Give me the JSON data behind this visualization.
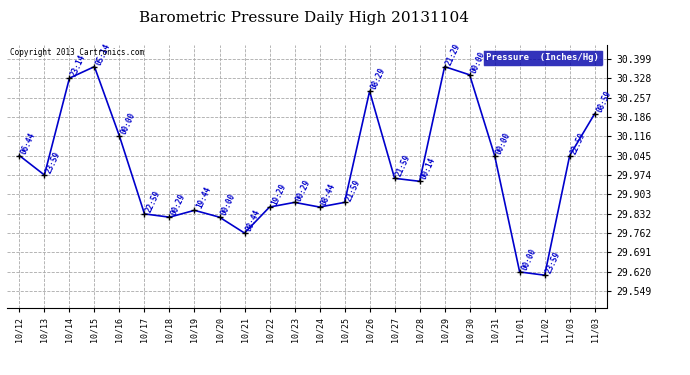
{
  "title": "Barometric Pressure Daily High 20131104",
  "copyright": "Copyright 2013 Cartronics.com",
  "legend_label": "Pressure  (Inches/Hg)",
  "line_color": "#0000CC",
  "marker_color": "#000000",
  "background_color": "#ffffff",
  "grid_color": "#aaaaaa",
  "points": [
    {
      "xi": 0,
      "date": "10/12",
      "value": 30.045,
      "time": "06:44"
    },
    {
      "xi": 1,
      "date": "10/13",
      "value": 29.974,
      "time": "23:59"
    },
    {
      "xi": 2,
      "date": "10/14",
      "value": 30.328,
      "time": "23:14"
    },
    {
      "xi": 3,
      "date": "10/15",
      "value": 30.37,
      "time": "05:14"
    },
    {
      "xi": 4,
      "date": "10/16",
      "value": 30.116,
      "time": "00:00"
    },
    {
      "xi": 5,
      "date": "10/17",
      "value": 29.832,
      "time": "22:59"
    },
    {
      "xi": 6,
      "date": "10/18",
      "value": 29.82,
      "time": "00:29"
    },
    {
      "xi": 7,
      "date": "10/19",
      "value": 29.845,
      "time": "19:44"
    },
    {
      "xi": 8,
      "date": "10/20",
      "value": 29.82,
      "time": "00:00"
    },
    {
      "xi": 9,
      "date": "10/21",
      "value": 29.762,
      "time": "08:44"
    },
    {
      "xi": 10,
      "date": "10/22",
      "value": 29.857,
      "time": "19:29"
    },
    {
      "xi": 11,
      "date": "10/23",
      "value": 29.874,
      "time": "00:29"
    },
    {
      "xi": 12,
      "date": "10/24",
      "value": 29.857,
      "time": "08:44"
    },
    {
      "xi": 13,
      "date": "10/25",
      "value": 29.874,
      "time": "21:59"
    },
    {
      "xi": 14,
      "date": "10/26",
      "value": 30.28,
      "time": "08:29"
    },
    {
      "xi": 15,
      "date": "10/27",
      "value": 29.962,
      "time": "21:59"
    },
    {
      "xi": 16,
      "date": "10/28",
      "value": 29.951,
      "time": "00:14"
    },
    {
      "xi": 17,
      "date": "10/29",
      "value": 30.37,
      "time": "21:29"
    },
    {
      "xi": 18,
      "date": "10/30",
      "value": 30.34,
      "time": "00:00"
    },
    {
      "xi": 19,
      "date": "10/31",
      "value": 30.045,
      "time": "00:00"
    },
    {
      "xi": 20,
      "date": "11/01",
      "value": 29.62,
      "time": "00:00"
    },
    {
      "xi": 21,
      "date": "11/02",
      "value": 29.608,
      "time": "23:59"
    },
    {
      "xi": 22,
      "date": "11/03",
      "value": 30.045,
      "time": "22:59"
    },
    {
      "xi": 23,
      "date": "11/03",
      "value": 30.198,
      "time": "08:59"
    }
  ],
  "x_tick_labels": [
    "10/12",
    "10/13",
    "10/14",
    "10/15",
    "10/16",
    "10/17",
    "10/18",
    "10/19",
    "10/20",
    "10/21",
    "10/22",
    "10/23",
    "10/24",
    "10/25",
    "10/26",
    "10/27",
    "10/28",
    "10/29",
    "10/30",
    "10/31",
    "11/01",
    "11/02",
    "11/03",
    "11/03"
  ],
  "ylim": [
    29.49,
    30.449
  ],
  "yticks": [
    29.549,
    29.62,
    29.691,
    29.762,
    29.832,
    29.903,
    29.974,
    30.045,
    30.116,
    30.186,
    30.257,
    30.328,
    30.399
  ],
  "legend_bg": "#0000AA",
  "legend_text_color": "#ffffff"
}
